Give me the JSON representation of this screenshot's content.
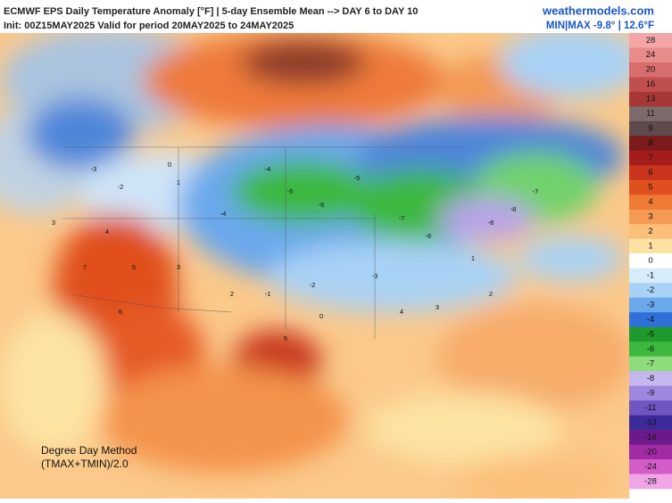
{
  "header": {
    "title": "ECMWF EPS Daily Temperature Anomaly [°F] | 5-day Ensemble Mean --> DAY 6 to DAY 10",
    "subtitle": "Init: 00Z15MAY2025 Valid for period 20MAY2025 to 24MAY2025",
    "brand": "weathermodels.com",
    "min_max": "MIN|MAX -9.8° | 12.6°F"
  },
  "legend": {
    "labels": [
      28,
      24,
      20,
      16,
      13,
      11,
      9,
      8,
      7,
      6,
      5,
      4,
      3,
      2,
      1,
      0,
      -1,
      -2,
      -3,
      -4,
      -5,
      -6,
      -7,
      -8,
      -9,
      -11,
      -13,
      -16,
      -20,
      -24,
      -28
    ],
    "colors": [
      "#f4a6a6",
      "#e88b8b",
      "#d86d6d",
      "#c05050",
      "#a83838",
      "#7d6a6a",
      "#5e4a4a",
      "#7a1a1a",
      "#a51c1c",
      "#c8341c",
      "#e0501f",
      "#ef7a33",
      "#f59a55",
      "#fbbf7a",
      "#fde3a3",
      "#ffffff",
      "#d7ecfb",
      "#a8d2f5",
      "#6aa8ec",
      "#2f6fd8",
      "#1f9a2c",
      "#3cb83e",
      "#8fdc7c",
      "#c6b6ee",
      "#9e86dc",
      "#6f54c2",
      "#3b2a9a",
      "#6a1a8a",
      "#a22aa2",
      "#d45cc8",
      "#f0a6e6"
    ]
  },
  "stations": [
    -3,
    -2,
    0,
    1,
    3,
    -4,
    -5,
    -6,
    -5,
    -7,
    -6,
    -8,
    -8,
    -7,
    4,
    5,
    7,
    6,
    3,
    2,
    -1,
    -2,
    -3,
    0,
    5,
    4,
    3,
    2,
    1,
    -4
  ],
  "footnote": {
    "method": "Degree Day Method",
    "formula": "(TMAX+TMIN)/2.0"
  }
}
